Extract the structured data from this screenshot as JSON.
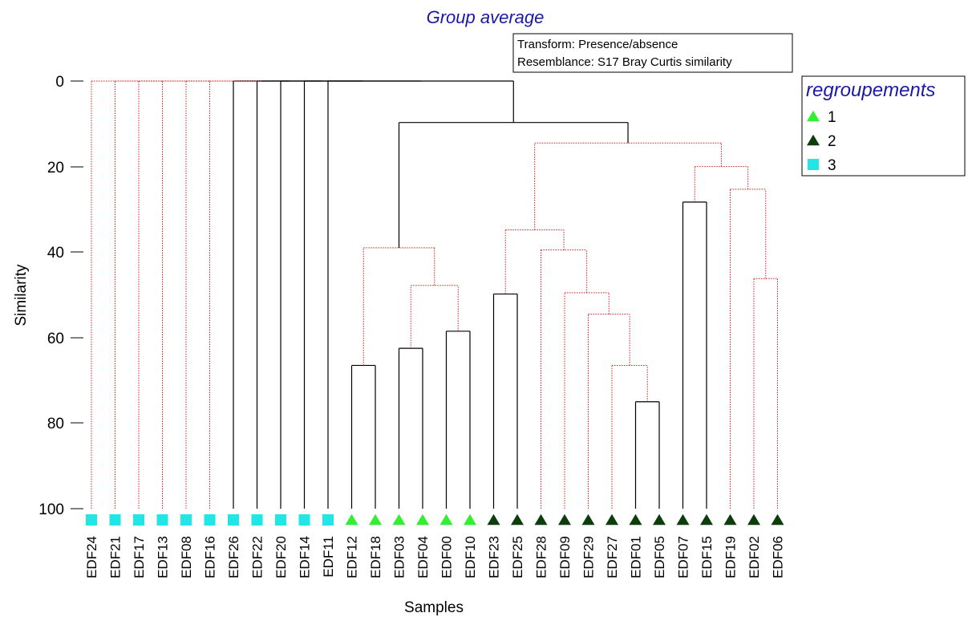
{
  "chart_data": {
    "type": "dendrogram",
    "title": "Group average",
    "info": [
      "Transform: Presence/absence",
      "Resemblance: S17 Bray Curtis similarity"
    ],
    "xlabel": "Samples",
    "ylabel": "Similarity",
    "yticks": [
      "0",
      "20",
      "40",
      "60",
      "80",
      "100"
    ],
    "ylim": [
      0,
      100
    ],
    "legend": {
      "title": "regroupements",
      "placement": "top-right",
      "entries": [
        {
          "label": "1",
          "shape": "triangle",
          "color": "#33ee33"
        },
        {
          "label": "2",
          "shape": "triangle",
          "color": "#0d3d0d"
        },
        {
          "label": "3",
          "shape": "square",
          "color": "#22e5e5"
        }
      ]
    },
    "link_colors": {
      "significant": "#000000",
      "non_significant": "#d81f1f"
    },
    "samples": [
      {
        "name": "EDF24",
        "group": "3"
      },
      {
        "name": "EDF21",
        "group": "3"
      },
      {
        "name": "EDF17",
        "group": "3"
      },
      {
        "name": "EDF13",
        "group": "3"
      },
      {
        "name": "EDF08",
        "group": "3"
      },
      {
        "name": "EDF16",
        "group": "3"
      },
      {
        "name": "EDF26",
        "group": "3"
      },
      {
        "name": "EDF22",
        "group": "3"
      },
      {
        "name": "EDF20",
        "group": "3"
      },
      {
        "name": "EDF14",
        "group": "3"
      },
      {
        "name": "EDF11",
        "group": "3"
      },
      {
        "name": "EDF12",
        "group": "1"
      },
      {
        "name": "EDF18",
        "group": "1"
      },
      {
        "name": "EDF03",
        "group": "1"
      },
      {
        "name": "EDF04",
        "group": "1"
      },
      {
        "name": "EDF00",
        "group": "1"
      },
      {
        "name": "EDF10",
        "group": "1"
      },
      {
        "name": "EDF23",
        "group": "2"
      },
      {
        "name": "EDF25",
        "group": "2"
      },
      {
        "name": "EDF28",
        "group": "2"
      },
      {
        "name": "EDF09",
        "group": "2"
      },
      {
        "name": "EDF29",
        "group": "2"
      },
      {
        "name": "EDF27",
        "group": "2"
      },
      {
        "name": "EDF01",
        "group": "2"
      },
      {
        "name": "EDF05",
        "group": "2"
      },
      {
        "name": "EDF07",
        "group": "2"
      },
      {
        "name": "EDF15",
        "group": "2"
      },
      {
        "name": "EDF19",
        "group": "2"
      },
      {
        "name": "EDF02",
        "group": "2"
      },
      {
        "name": "EDF06",
        "group": "2"
      }
    ],
    "merges": [
      {
        "left": "EDF12",
        "right": "EDF18",
        "similarity": 66.5,
        "style": "solid"
      },
      {
        "left": "EDF03",
        "right": "EDF04",
        "similarity": 62.5,
        "style": "solid"
      },
      {
        "left": "EDF00",
        "right": "EDF10",
        "similarity": 58.5,
        "style": "solid"
      },
      {
        "left": "EDF03+EDF04",
        "right": "EDF00+EDF10",
        "similarity": 47.8,
        "style": "dotted"
      },
      {
        "left": "EDF12+EDF18",
        "right": "EDF03..EDF10",
        "similarity": 39,
        "style": "dotted"
      },
      {
        "left": "EDF01",
        "right": "EDF05",
        "similarity": 75,
        "style": "solid"
      },
      {
        "left": "EDF27",
        "right": "EDF01+EDF05",
        "similarity": 66.5,
        "style": "dotted"
      },
      {
        "left": "EDF29",
        "right": "EDF27..EDF05",
        "similarity": 54.5,
        "style": "dotted"
      },
      {
        "left": "EDF09",
        "right": "EDF29..EDF05",
        "similarity": 49.5,
        "style": "dotted"
      },
      {
        "left": "EDF28",
        "right": "EDF09..EDF05",
        "similarity": 39.5,
        "style": "dotted"
      },
      {
        "left": "EDF23",
        "right": "EDF25",
        "similarity": 49.8,
        "style": "solid"
      },
      {
        "left": "EDF23+EDF25",
        "right": "EDF28..EDF05",
        "similarity": 34.8,
        "style": "dotted"
      },
      {
        "left": "EDF07",
        "right": "EDF15",
        "similarity": 28.3,
        "style": "solid"
      },
      {
        "left": "EDF02",
        "right": "EDF06",
        "similarity": 46.2,
        "style": "dotted"
      },
      {
        "left": "EDF19",
        "right": "EDF02+EDF06",
        "similarity": 25.3,
        "style": "dotted"
      },
      {
        "left": "EDF07+EDF15",
        "right": "EDF19..EDF06",
        "similarity": 20,
        "style": "dotted"
      },
      {
        "left": "EDF23..EDF05",
        "right": "EDF07..EDF06",
        "similarity": 14.5,
        "style": "dotted"
      },
      {
        "left": "EDF12..EDF10",
        "right": "EDF23..EDF06",
        "similarity": 9.7,
        "style": "solid"
      },
      {
        "left": "EDF11",
        "right": "EDF12..EDF06",
        "similarity": 0,
        "style": "solid"
      },
      {
        "left": "EDF14",
        "right": "EDF11..EDF06",
        "similarity": 0,
        "style": "solid"
      },
      {
        "left": "EDF20",
        "right": "EDF14..EDF06",
        "similarity": 0,
        "style": "solid"
      },
      {
        "left": "EDF22",
        "right": "EDF20..EDF06",
        "similarity": 0,
        "style": "solid"
      },
      {
        "left": "EDF26",
        "right": "EDF22..EDF06",
        "similarity": 0,
        "style": "solid"
      },
      {
        "left": "EDF16",
        "right": "EDF26..EDF06",
        "similarity": 0,
        "style": "dotted"
      },
      {
        "left": "EDF08",
        "right": "EDF16..EDF06",
        "similarity": 0,
        "style": "dotted"
      },
      {
        "left": "EDF13",
        "right": "EDF08..EDF06",
        "similarity": 0,
        "style": "dotted"
      },
      {
        "left": "EDF17",
        "right": "EDF13..EDF06",
        "similarity": 0,
        "style": "dotted"
      },
      {
        "left": "EDF21",
        "right": "EDF17..EDF06",
        "similarity": 0,
        "style": "dotted"
      },
      {
        "left": "EDF24",
        "right": "EDF21..EDF06",
        "similarity": 0,
        "style": "dotted"
      }
    ]
  }
}
